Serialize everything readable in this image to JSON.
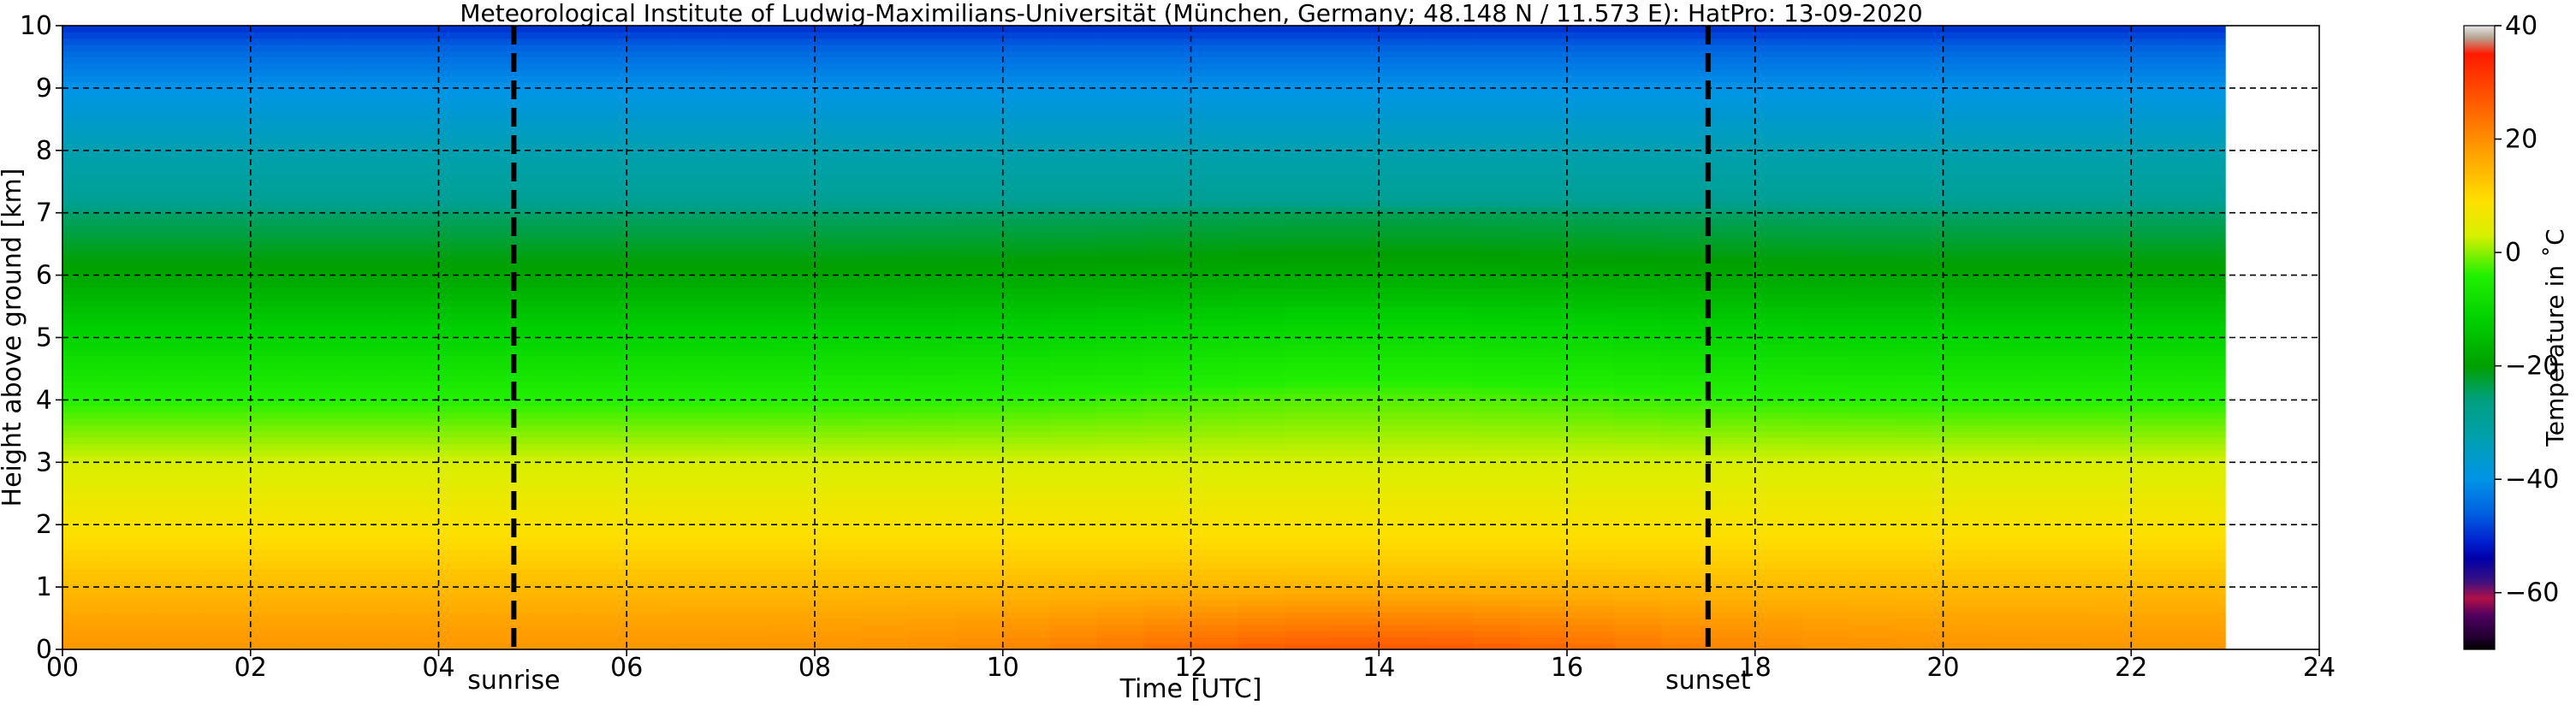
{
  "chart_data": {
    "type": "heatmap",
    "title": "Meteorological Institute of Ludwig-Maximilians-Universität (München, Germany; 48.148 N / 11.573 E):    HatPro: 13-09-2020",
    "xlabel": "Time [UTC]",
    "ylabel": "Height above ground [km]",
    "xlim": [
      0,
      24
    ],
    "ylim": [
      0,
      10
    ],
    "data_x_range": [
      0,
      23.0
    ],
    "x_ticks": [
      0,
      2,
      4,
      6,
      8,
      10,
      12,
      14,
      16,
      18,
      20,
      22,
      24
    ],
    "x_tick_labels": [
      "00",
      "02",
      "04",
      "06",
      "08",
      "10",
      "12",
      "14",
      "16",
      "18",
      "20",
      "22",
      "24"
    ],
    "y_ticks": [
      0,
      1,
      2,
      3,
      4,
      5,
      6,
      7,
      8,
      9,
      10
    ],
    "y_tick_labels": [
      "0",
      "1",
      "2",
      "3",
      "4",
      "5",
      "6",
      "7",
      "8",
      "9",
      "10"
    ],
    "grid": true,
    "events": [
      {
        "label": "sunrise",
        "time": 4.8
      },
      {
        "label": "sunset",
        "time": 17.5
      }
    ],
    "temperature_profile": {
      "height_km": [
        0,
        0.5,
        1,
        1.5,
        2,
        3,
        4,
        5,
        6,
        7,
        7.2,
        8,
        9,
        9.6,
        10
      ],
      "night_temp_c": [
        19,
        17,
        14,
        11,
        8,
        3,
        -4,
        -11,
        -19,
        -25,
        -29,
        -33,
        -40,
        -45,
        -50
      ],
      "afternoon_temp_c": [
        27,
        21,
        15,
        11,
        8,
        3,
        -2,
        -9,
        -18,
        -24,
        -29,
        -33,
        -40,
        -45,
        -50
      ]
    },
    "colorbar": {
      "label": "Temperature in ˚C",
      "vmin": -70,
      "vmax": 40,
      "ticks": [
        40,
        20,
        0,
        -20,
        -40,
        -60
      ],
      "tick_labels": [
        "40",
        "20",
        "0",
        "−20",
        "−40",
        "−60"
      ],
      "stops": [
        {
          "t": 40,
          "color": "#e8e8e8"
        },
        {
          "t": 38,
          "color": "#b8a898"
        },
        {
          "t": 35,
          "color": "#ff1a00"
        },
        {
          "t": 25,
          "color": "#ff6600"
        },
        {
          "t": 17,
          "color": "#ffa500"
        },
        {
          "t": 9,
          "color": "#ffe000"
        },
        {
          "t": 3,
          "color": "#d8f000"
        },
        {
          "t": -4,
          "color": "#22f000"
        },
        {
          "t": -12,
          "color": "#00d000"
        },
        {
          "t": -20,
          "color": "#00a000"
        },
        {
          "t": -26,
          "color": "#00a080"
        },
        {
          "t": -33,
          "color": "#00a0b0"
        },
        {
          "t": -40,
          "color": "#0094e8"
        },
        {
          "t": -46,
          "color": "#0060e0"
        },
        {
          "t": -51,
          "color": "#0020d0"
        },
        {
          "t": -54,
          "color": "#0000a8"
        },
        {
          "t": -58,
          "color": "#3a1080"
        },
        {
          "t": -61,
          "color": "#b01048"
        },
        {
          "t": -64,
          "color": "#500060"
        },
        {
          "t": -68,
          "color": "#200030"
        },
        {
          "t": -70,
          "color": "#000000"
        }
      ]
    }
  }
}
